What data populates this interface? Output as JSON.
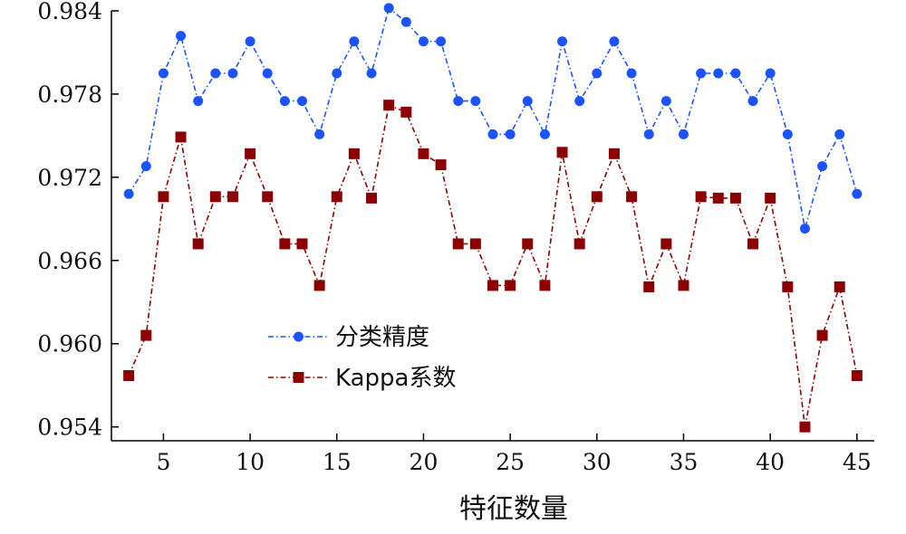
{
  "chart_data": {
    "type": "line",
    "title": "",
    "xlabel": "特征数量",
    "ylabel": "",
    "xlim": [
      2,
      46
    ],
    "ylim": [
      0.953,
      0.984
    ],
    "xticks": [
      5,
      10,
      15,
      20,
      25,
      30,
      35,
      40,
      45
    ],
    "xtick_labels": [
      "5",
      "10",
      "15",
      "20",
      "25",
      "30",
      "35",
      "40",
      "45"
    ],
    "yticks": [
      0.954,
      0.96,
      0.966,
      0.972,
      0.978,
      0.984
    ],
    "ytick_labels": [
      "0.954",
      "0.960",
      "0.966",
      "0.972",
      "0.978",
      "0.984"
    ],
    "grid": false,
    "legend_position": "lower-left",
    "x": [
      3,
      4,
      5,
      6,
      7,
      8,
      9,
      10,
      11,
      12,
      13,
      14,
      15,
      16,
      17,
      18,
      19,
      20,
      21,
      22,
      23,
      24,
      25,
      26,
      27,
      28,
      29,
      30,
      31,
      32,
      33,
      34,
      35,
      36,
      37,
      38,
      39,
      40,
      41,
      42,
      43,
      44,
      45
    ],
    "series": [
      {
        "name": "分类精度",
        "color": "#1a53ff",
        "marker": "circle",
        "values": [
          0.9708,
          0.9728,
          0.9795,
          0.9822,
          0.9775,
          0.9795,
          0.9795,
          0.9818,
          0.9795,
          0.9775,
          0.9775,
          0.9751,
          0.9795,
          0.9818,
          0.9795,
          0.9842,
          0.9832,
          0.9818,
          0.9818,
          0.9775,
          0.9775,
          0.9751,
          0.9751,
          0.9775,
          0.9751,
          0.9818,
          0.9775,
          0.9795,
          0.9818,
          0.9795,
          0.9751,
          0.9775,
          0.9751,
          0.9795,
          0.9795,
          0.9795,
          0.9775,
          0.9795,
          0.9751,
          0.9683,
          0.9728,
          0.9751,
          0.9708
        ]
      },
      {
        "name": "Kappa系数",
        "color": "#8b0000",
        "marker": "square",
        "values": [
          0.9577,
          0.9606,
          0.9706,
          0.9749,
          0.9672,
          0.9706,
          0.9706,
          0.9737,
          0.9706,
          0.9672,
          0.9672,
          0.9642,
          0.9706,
          0.9737,
          0.9705,
          0.9772,
          0.9767,
          0.9737,
          0.9729,
          0.9672,
          0.9672,
          0.9642,
          0.9642,
          0.9672,
          0.9642,
          0.9738,
          0.9672,
          0.9706,
          0.9737,
          0.9706,
          0.9641,
          0.9672,
          0.9642,
          0.9706,
          0.9705,
          0.9705,
          0.9672,
          0.9705,
          0.9641,
          0.954,
          0.9606,
          0.9641,
          0.9577
        ]
      }
    ]
  }
}
